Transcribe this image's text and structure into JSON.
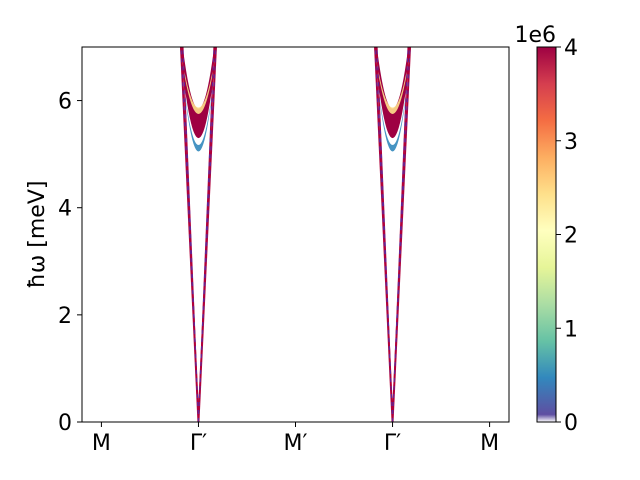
{
  "chart_data": {
    "type": "heatmap",
    "title": "",
    "xlabel": "",
    "ylabel": "ħω [meV]",
    "x_ticks": [
      {
        "pos": 0.0,
        "label": "M"
      },
      {
        "pos": 1.0,
        "label": "Γ′"
      },
      {
        "pos": 2.0,
        "label": "M′"
      },
      {
        "pos": 3.0,
        "label": "Γ′"
      },
      {
        "pos": 4.0,
        "label": "M"
      }
    ],
    "xlim": [
      -0.2,
      4.2
    ],
    "ylim": [
      0,
      7
    ],
    "y_ticks": [
      0,
      2,
      4,
      6
    ],
    "grid": false,
    "dispersion": {
      "minima_x": [
        1.0,
        3.0
      ],
      "cone_half_width_at_max": [
        0.18,
        0.32
      ],
      "bands": [
        {
          "name_ref": "band-low",
          "vertex_energy": 5.05,
          "color_level": 0.5
        },
        {
          "name_ref": "band-mid",
          "vertex_energy": 5.3,
          "color_level": 4.0
        },
        {
          "name_ref": "band-high",
          "vertex_energy": 5.75,
          "color_level": 2.5
        }
      ],
      "line_color": "#b0003a",
      "dashed_overlay_color": "#3a3ac8"
    },
    "colorbar": {
      "min": 0,
      "max": 4,
      "ticks": [
        0,
        1,
        2,
        3,
        4
      ],
      "offset_label": "1e6",
      "colormap": "Spectral_r",
      "stops": [
        "#ffffff",
        "#5e4fa2",
        "#3288bd",
        "#66c2a5",
        "#abdda4",
        "#e6f598",
        "#ffffbf",
        "#fee08b",
        "#fdae61",
        "#f46d43",
        "#d53e4f",
        "#9e0142"
      ]
    }
  }
}
